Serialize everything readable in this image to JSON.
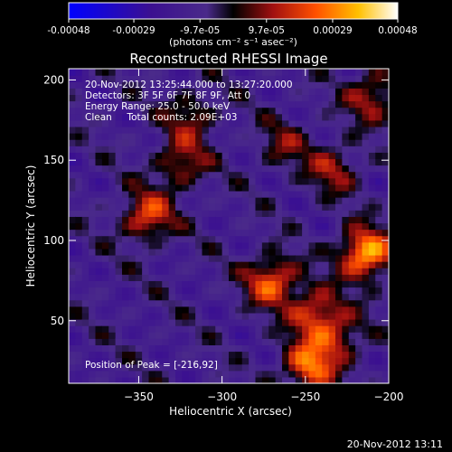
{
  "chart_data": {
    "type": "heatmap",
    "title": "Reconstructed RHESSI Image",
    "xlabel": "Heliocentric X (arcsec)",
    "ylabel": "Heliocentric Y (arcsec)",
    "xlim": [
      -392,
      -200
    ],
    "ylim": [
      11,
      207
    ],
    "x_ticks": [
      -350,
      -300,
      -250,
      -200
    ],
    "y_ticks": [
      50,
      100,
      150,
      200
    ],
    "colorbar": {
      "min": -0.00048,
      "max": 0.00048,
      "unit": "(photons cm⁻² s⁻¹ asec⁻²)",
      "ticks": [
        -0.00048,
        -0.00029,
        -9.7e-05,
        9.7e-05,
        0.00029,
        0.00048
      ],
      "tick_labels": [
        "-0.00048",
        "-0.00029",
        "-9.7e-05",
        "9.7e-05",
        "0.00029",
        "0.00048"
      ]
    },
    "annotations": [
      "20-Nov-2012 13:25:44.000 to 13:27:20.000",
      "Detectors: 3F 5F 6F 7F 8F 9F, Att 0",
      "Energy Range: 25.0 - 50.0 keV",
      "Clean     Total counts: 2.09E+03"
    ],
    "peak_label": "Position of Peak = [-216,92]",
    "peak_position": [
      -216,
      92
    ],
    "grid": false,
    "sources": [
      {
        "x": -214,
        "y": 92,
        "peak": 0.00048
      },
      {
        "x": -270,
        "y": 75,
        "peak": 0.00036
      },
      {
        "x": -244,
        "y": 55,
        "peak": 0.0003
      },
      {
        "x": -248,
        "y": 22,
        "peak": 0.00038
      },
      {
        "x": -345,
        "y": 115,
        "peak": 0.00032
      },
      {
        "x": -325,
        "y": 148,
        "peak": 0.00024
      },
      {
        "x": -318,
        "y": 178,
        "peak": 0.0002
      },
      {
        "x": -210,
        "y": 190,
        "peak": 0.00026
      },
      {
        "x": -233,
        "y": 145,
        "peak": 0.00022
      },
      {
        "x": -263,
        "y": 160,
        "peak": 0.00016
      },
      {
        "x": -230,
        "y": 40,
        "peak": 0.00022
      }
    ]
  },
  "footer": {
    "timestamp": "20-Nov-2012 13:11"
  }
}
